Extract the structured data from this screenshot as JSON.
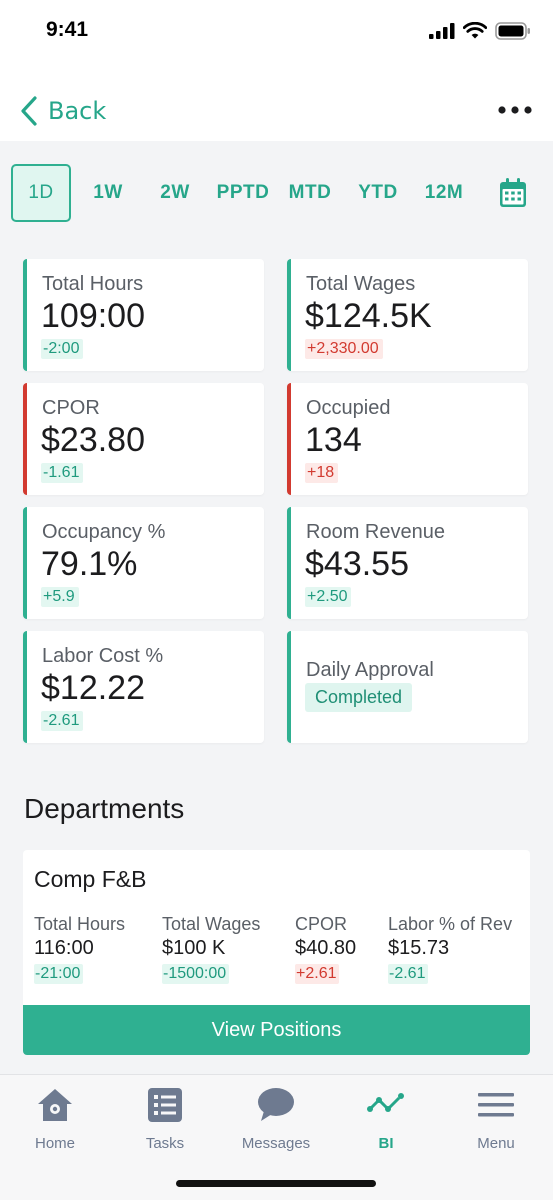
{
  "status": {
    "time": "9:41"
  },
  "nav": {
    "back_label": "Back"
  },
  "periods": [
    "1D",
    "1W",
    "2W",
    "PPTD",
    "MTD",
    "YTD",
    "12M"
  ],
  "active_period": "1D",
  "kpis": {
    "total_hours": {
      "title": "Total Hours",
      "value": "109:00",
      "delta": "-2:00",
      "trend": "pos"
    },
    "total_wages": {
      "title": "Total Wages",
      "value": "$124.5K",
      "delta": "+2,330.00",
      "trend": "neg"
    },
    "cpor": {
      "title": "CPOR",
      "value": "$23.80",
      "delta": "-1.61",
      "trend": "pos"
    },
    "occupied": {
      "title": "Occupied",
      "value": "134",
      "delta": "+18",
      "trend": "neg"
    },
    "occupancy": {
      "title": "Occupancy %",
      "value": "79.1%",
      "delta": "+5.9",
      "trend": "pos"
    },
    "room_revenue": {
      "title": "Room Revenue",
      "value": "$43.55",
      "delta": "+2.50",
      "trend": "pos"
    },
    "labor_cost": {
      "title": "Labor Cost %",
      "value": "$12.22",
      "delta": "-2.61",
      "trend": "pos"
    },
    "daily_approval": {
      "title": "Daily Approval",
      "status": "Completed"
    }
  },
  "departments": {
    "section_title": "Departments",
    "items": [
      {
        "name": "Comp F&B",
        "metrics": [
          {
            "label": "Total Hours",
            "value": "116:00",
            "delta": "-21:00",
            "trend": "pos"
          },
          {
            "label": "Total Wages",
            "value": "$100 K",
            "delta": "-1500:00",
            "trend": "pos"
          },
          {
            "label": "CPOR",
            "value": "$40.80",
            "delta": "+2.61",
            "trend": "neg"
          },
          {
            "label": "Labor % of Rev",
            "value": "$15.73",
            "delta": "-2.61",
            "trend": "pos"
          }
        ],
        "button_label": "View Positions"
      }
    ]
  },
  "tabs": [
    {
      "label": "Home",
      "icon": "home-icon"
    },
    {
      "label": "Tasks",
      "icon": "tasks-list-icon"
    },
    {
      "label": "Messages",
      "icon": "chat-bubble-icon"
    },
    {
      "label": "BI",
      "icon": "bi-line-chart-icon",
      "active": true
    },
    {
      "label": "Menu",
      "icon": "hamburger-menu-icon"
    }
  ],
  "colors": {
    "accent": "#2fb091",
    "accent_text": "#26a68a",
    "negative": "#d23a30",
    "tab_inactive": "#6e7a90"
  }
}
